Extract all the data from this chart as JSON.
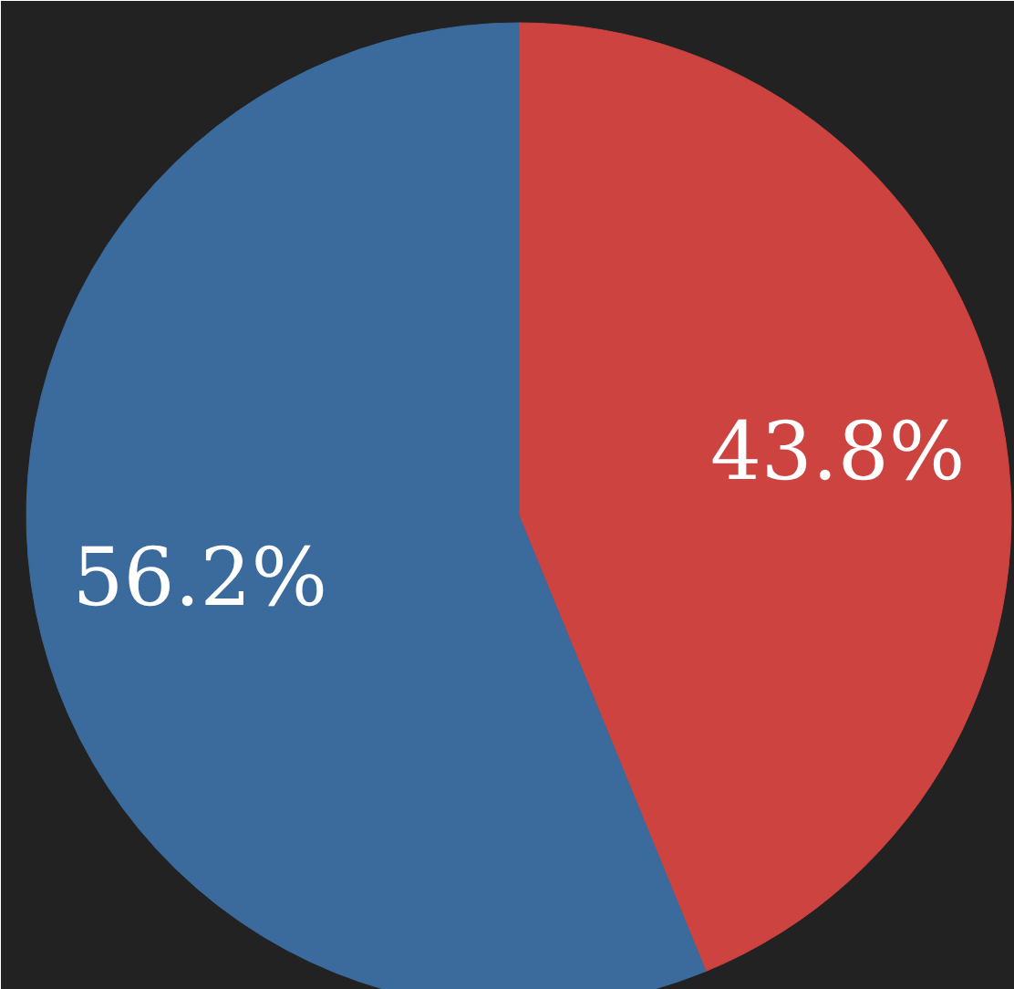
{
  "chart_data": {
    "type": "pie",
    "categories": [
      null,
      null
    ],
    "values": [
      43.8,
      56.2
    ],
    "colors": [
      "#cc4340",
      "#3a6b9c"
    ],
    "value_labels": [
      "43.8%",
      "56.2%"
    ]
  }
}
